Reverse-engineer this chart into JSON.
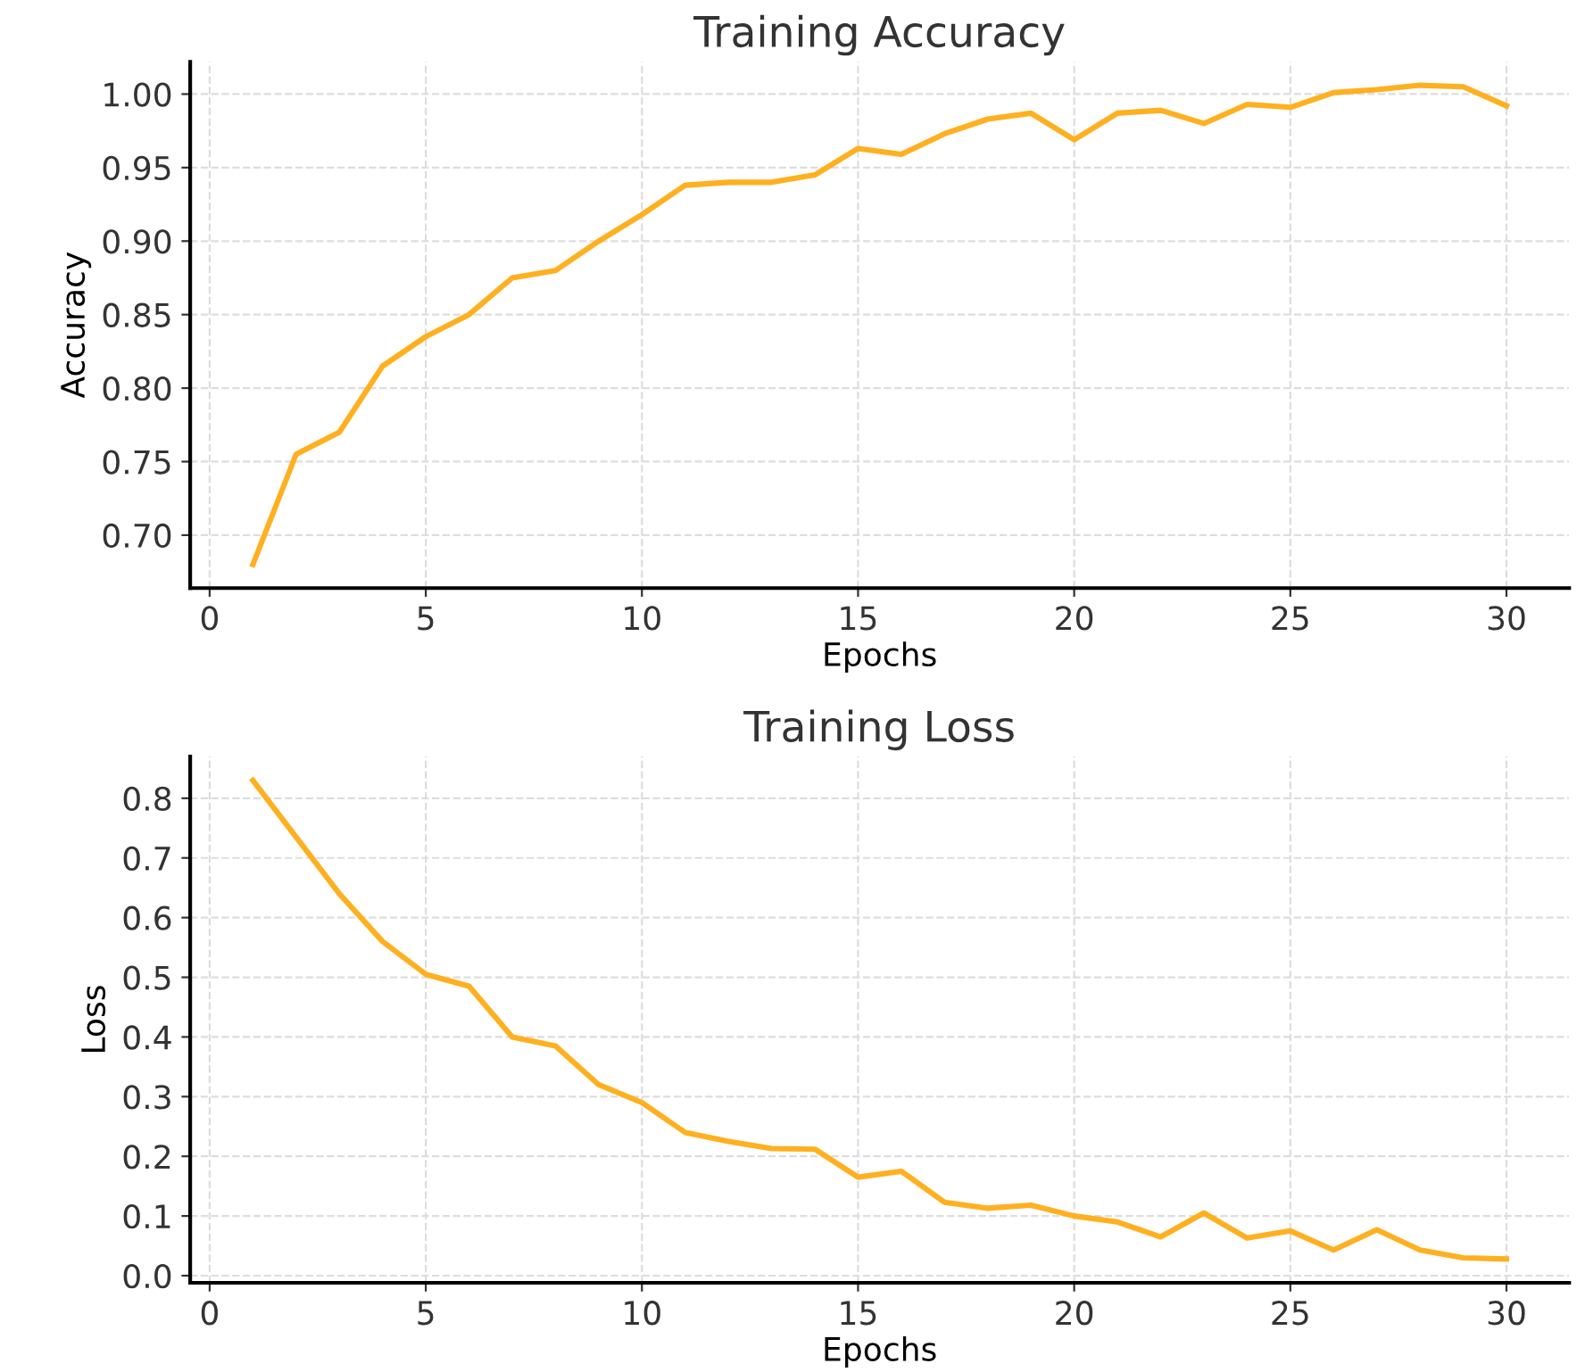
{
  "chart_data": [
    {
      "type": "line",
      "title": "Training Accuracy",
      "xlabel": "Epochs",
      "ylabel": "Accuracy",
      "x": [
        1,
        2,
        3,
        4,
        5,
        6,
        7,
        8,
        9,
        10,
        11,
        12,
        13,
        14,
        15,
        16,
        17,
        18,
        19,
        20,
        21,
        22,
        23,
        24,
        25,
        26,
        27,
        28,
        29,
        30
      ],
      "series": [
        {
          "color": "#ffb020",
          "values": [
            0.68,
            0.755,
            0.77,
            0.815,
            0.835,
            0.85,
            0.875,
            0.88,
            0.9,
            0.918,
            0.938,
            0.94,
            0.94,
            0.945,
            0.963,
            0.959,
            0.973,
            0.983,
            0.987,
            0.969,
            0.987,
            0.989,
            0.98,
            0.993,
            0.991,
            1.001,
            1.003,
            1.006,
            1.005,
            0.992
          ]
        }
      ],
      "xlim": [
        -0.45,
        31.45
      ],
      "ylim": [
        0.664,
        1.022
      ],
      "xticks": [
        0,
        5,
        10,
        15,
        20,
        25,
        30
      ],
      "yticks": [
        {
          "value": 0.7,
          "label": "0.70"
        },
        {
          "value": 0.75,
          "label": "0.75"
        },
        {
          "value": 0.8,
          "label": "0.80"
        },
        {
          "value": 0.85,
          "label": "0.85"
        },
        {
          "value": 0.9,
          "label": "0.90"
        },
        {
          "value": 0.95,
          "label": "0.95"
        },
        {
          "value": 1.0,
          "label": "1.00"
        }
      ],
      "grid": true,
      "line_style": "solid"
    },
    {
      "type": "line",
      "title": "Training Loss",
      "xlabel": "Epochs",
      "ylabel": "Loss",
      "x": [
        1,
        2,
        3,
        4,
        5,
        6,
        7,
        8,
        9,
        10,
        11,
        12,
        13,
        14,
        15,
        16,
        17,
        18,
        19,
        20,
        21,
        22,
        23,
        24,
        25,
        26,
        27,
        28,
        29,
        30
      ],
      "series": [
        {
          "color": "#ffb020",
          "values": [
            0.83,
            0.735,
            0.64,
            0.56,
            0.505,
            0.485,
            0.4,
            0.385,
            0.32,
            0.29,
            0.24,
            0.225,
            0.213,
            0.212,
            0.165,
            0.175,
            0.123,
            0.113,
            0.118,
            0.1,
            0.09,
            0.065,
            0.105,
            0.063,
            0.075,
            0.043,
            0.077,
            0.043,
            0.03,
            0.028
          ]
        }
      ],
      "xlim": [
        -0.45,
        31.45
      ],
      "ylim": [
        -0.012,
        0.87
      ],
      "xticks": [
        0,
        5,
        10,
        15,
        20,
        25,
        30
      ],
      "yticks": [
        {
          "value": 0,
          "label": "0.0"
        },
        0.1,
        0.2,
        0.3,
        0.4,
        0.5,
        0.6,
        0.7,
        0.8
      ],
      "grid": true,
      "line_style": "solid"
    }
  ]
}
